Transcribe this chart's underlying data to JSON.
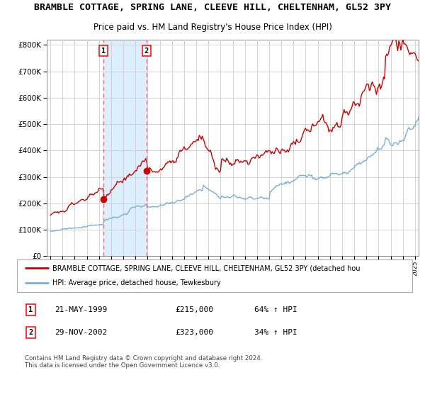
{
  "title": "BRAMBLE COTTAGE, SPRING LANE, CLEEVE HILL, CHELTENHAM, GL52 3PY",
  "subtitle": "Price paid vs. HM Land Registry's House Price Index (HPI)",
  "title_fontsize": 9.5,
  "subtitle_fontsize": 8.5,
  "red_line_label": "BRAMBLE COTTAGE, SPRING LANE, CLEEVE HILL, CHELTENHAM, GL52 3PY (detached hou",
  "blue_line_label": "HPI: Average price, detached house, Tewkesbury",
  "copyright_text": "Contains HM Land Registry data © Crown copyright and database right 2024.\nThis data is licensed under the Open Government Licence v3.0.",
  "sale1_label": "1",
  "sale1_date": "21-MAY-1999",
  "sale1_price": "£215,000",
  "sale1_hpi": "64% ↑ HPI",
  "sale1_year": 1999.37,
  "sale1_value": 215000,
  "sale2_label": "2",
  "sale2_date": "29-NOV-2002",
  "sale2_price": "£323,000",
  "sale2_hpi": "34% ↑ HPI",
  "sale2_year": 2002.91,
  "sale2_value": 323000,
  "red_color": "#cc0000",
  "blue_color": "#7aadd4",
  "shade_color": "#ddeeff",
  "marker_color": "#cc0000",
  "vline_color": "#ff6666",
  "ylim": [
    0,
    820000
  ],
  "yticks": [
    0,
    100000,
    200000,
    300000,
    400000,
    500000,
    600000,
    700000,
    800000
  ],
  "background_color": "#ffffff",
  "grid_color": "#cccccc",
  "xlim_left": 1994.7,
  "xlim_right": 2025.3
}
